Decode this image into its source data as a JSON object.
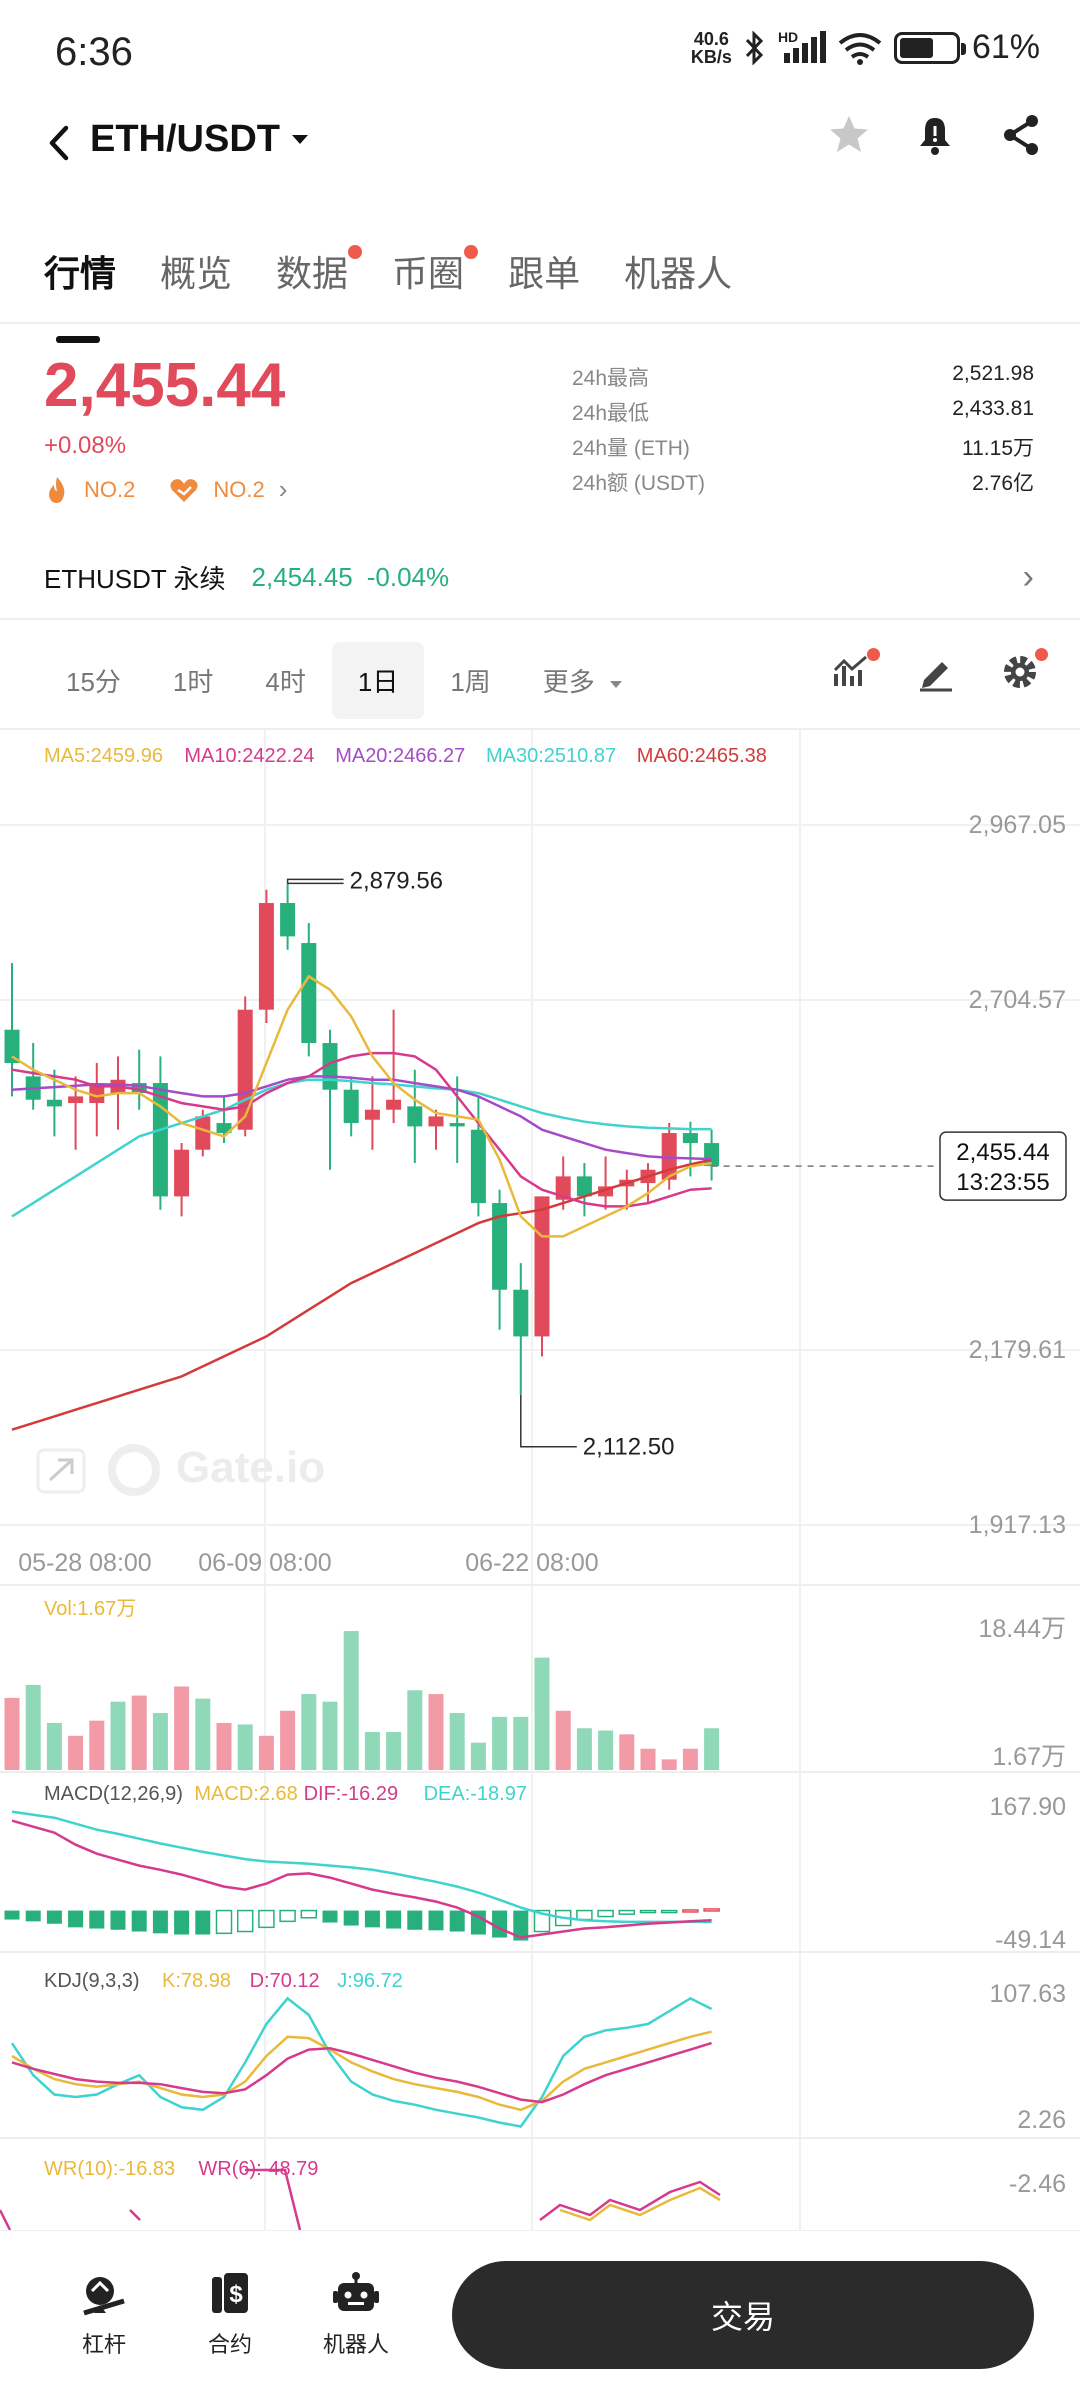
{
  "status": {
    "time": "6:36",
    "net_speed_value": "40.6",
    "net_speed_unit": "KB/s",
    "battery": "61%",
    "battery_level": 0.61,
    "hd_label": "HD"
  },
  "header": {
    "pair": "ETH/USDT"
  },
  "tabs": [
    {
      "label": "行情",
      "dot": false
    },
    {
      "label": "概览",
      "dot": false
    },
    {
      "label": "数据",
      "dot": true
    },
    {
      "label": "币圈",
      "dot": true
    },
    {
      "label": "跟单",
      "dot": false
    },
    {
      "label": "机器人",
      "dot": false
    }
  ],
  "price": {
    "last": "2,455.44",
    "change": "+0.08%",
    "rank1": "NO.2",
    "rank2": "NO.2",
    "stats": [
      {
        "label": "24h最高",
        "value": "2,521.98"
      },
      {
        "label": "24h最低",
        "value": "2,433.81"
      },
      {
        "label": "24h量 (ETH)",
        "value": "11.15万"
      },
      {
        "label": "24h额 (USDT)",
        "value": "2.76亿"
      }
    ]
  },
  "perp": {
    "label": "ETHUSDT 永续",
    "price": "2,454.45",
    "change": "-0.04%"
  },
  "intervals": [
    "15分",
    "1时",
    "4时",
    "1日",
    "1周"
  ],
  "active_interval": "1日",
  "more_label": "更多",
  "colors": {
    "up": "#e14a5a",
    "down": "#27b07c",
    "ma5": "#e8b93a",
    "ma10": "#d63a8c",
    "ma20": "#a64bc7",
    "ma30": "#3fd3cf",
    "ma60": "#d43a3a"
  },
  "chart_data": {
    "type": "candlestick",
    "ma_legend": [
      {
        "label": "MA5:2459.96",
        "color": "#e8b93a"
      },
      {
        "label": "MA10:2422.24",
        "color": "#d63a8c"
      },
      {
        "label": "MA20:2466.27",
        "color": "#a64bc7"
      },
      {
        "label": "MA30:2510.87",
        "color": "#3fd3cf"
      },
      {
        "label": "MA60:2465.38",
        "color": "#d43a3a"
      }
    ],
    "y_ticks": [
      "2,967.05",
      "2,704.57",
      "2,179.61",
      "1,917.13"
    ],
    "y_range": [
      1917.13,
      2967.05
    ],
    "x_labels": [
      "05-28 08:00",
      "06-09 08:00",
      "06-22 08:00"
    ],
    "high_label": "2,879.56",
    "low_label": "2,112.50",
    "last_price": "2,455.44",
    "countdown": "13:23:55",
    "watermark": "Gate.io",
    "candles": [
      {
        "o": 2660,
        "h": 2760,
        "l": 2560,
        "c": 2610
      },
      {
        "o": 2590,
        "h": 2640,
        "l": 2540,
        "c": 2555
      },
      {
        "o": 2555,
        "h": 2600,
        "l": 2500,
        "c": 2545
      },
      {
        "o": 2550,
        "h": 2590,
        "l": 2480,
        "c": 2560
      },
      {
        "o": 2550,
        "h": 2610,
        "l": 2500,
        "c": 2580
      },
      {
        "o": 2565,
        "h": 2620,
        "l": 2510,
        "c": 2585
      },
      {
        "o": 2580,
        "h": 2630,
        "l": 2540,
        "c": 2565
      },
      {
        "o": 2580,
        "h": 2620,
        "l": 2390,
        "c": 2410
      },
      {
        "o": 2410,
        "h": 2490,
        "l": 2380,
        "c": 2480
      },
      {
        "o": 2480,
        "h": 2540,
        "l": 2470,
        "c": 2530
      },
      {
        "o": 2520,
        "h": 2560,
        "l": 2490,
        "c": 2505
      },
      {
        "o": 2510,
        "h": 2710,
        "l": 2500,
        "c": 2690
      },
      {
        "o": 2690,
        "h": 2870,
        "l": 2670,
        "c": 2850
      },
      {
        "o": 2850,
        "h": 2879.56,
        "l": 2780,
        "c": 2800
      },
      {
        "o": 2790,
        "h": 2820,
        "l": 2620,
        "c": 2640
      },
      {
        "o": 2640,
        "h": 2660,
        "l": 2450,
        "c": 2570
      },
      {
        "o": 2570,
        "h": 2590,
        "l": 2500,
        "c": 2520
      },
      {
        "o": 2525,
        "h": 2590,
        "l": 2480,
        "c": 2540
      },
      {
        "o": 2540,
        "h": 2690,
        "l": 2520,
        "c": 2555
      },
      {
        "o": 2545,
        "h": 2600,
        "l": 2460,
        "c": 2515
      },
      {
        "o": 2515,
        "h": 2540,
        "l": 2480,
        "c": 2530
      },
      {
        "o": 2520,
        "h": 2590,
        "l": 2460,
        "c": 2515
      },
      {
        "o": 2510,
        "h": 2560,
        "l": 2380,
        "c": 2400
      },
      {
        "o": 2400,
        "h": 2420,
        "l": 2210,
        "c": 2270
      },
      {
        "o": 2270,
        "h": 2310,
        "l": 2112.5,
        "c": 2200
      },
      {
        "o": 2200,
        "h": 2410,
        "l": 2170,
        "c": 2410
      },
      {
        "o": 2405,
        "h": 2470,
        "l": 2390,
        "c": 2440
      },
      {
        "o": 2440,
        "h": 2460,
        "l": 2380,
        "c": 2410
      },
      {
        "o": 2410,
        "h": 2470,
        "l": 2390,
        "c": 2425
      },
      {
        "o": 2425,
        "h": 2450,
        "l": 2390,
        "c": 2435
      },
      {
        "o": 2430,
        "h": 2460,
        "l": 2400,
        "c": 2450
      },
      {
        "o": 2435,
        "h": 2520,
        "l": 2420,
        "c": 2505
      },
      {
        "o": 2505,
        "h": 2521.98,
        "l": 2440,
        "c": 2490
      },
      {
        "o": 2490,
        "h": 2510,
        "l": 2433.81,
        "c": 2455.44
      }
    ],
    "ma5": [
      2620,
      2600,
      2585,
      2570,
      2560,
      2565,
      2565,
      2545,
      2520,
      2510,
      2500,
      2530,
      2610,
      2690,
      2740,
      2720,
      2680,
      2620,
      2580,
      2555,
      2535,
      2530,
      2525,
      2465,
      2380,
      2350,
      2350,
      2365,
      2380,
      2395,
      2415,
      2440,
      2455,
      2460
    ],
    "ma10": [
      2600,
      2595,
      2590,
      2585,
      2575,
      2575,
      2570,
      2560,
      2550,
      2545,
      2540,
      2545,
      2565,
      2580,
      2590,
      2610,
      2620,
      2625,
      2625,
      2620,
      2600,
      2560,
      2520,
      2480,
      2440,
      2420,
      2410,
      2400,
      2395,
      2395,
      2400,
      2410,
      2420,
      2422
    ],
    "ma20": [
      2570,
      2572,
      2574,
      2576,
      2578,
      2578,
      2576,
      2570,
      2565,
      2560,
      2560,
      2565,
      2575,
      2585,
      2590,
      2590,
      2588,
      2585,
      2585,
      2580,
      2575,
      2570,
      2560,
      2545,
      2530,
      2510,
      2500,
      2490,
      2480,
      2475,
      2470,
      2468,
      2467,
      2466
    ],
    "ma30": [
      2380,
      2400,
      2420,
      2440,
      2460,
      2480,
      2500,
      2510,
      2520,
      2530,
      2540,
      2555,
      2570,
      2580,
      2585,
      2585,
      2583,
      2580,
      2578,
      2575,
      2572,
      2570,
      2565,
      2555,
      2545,
      2535,
      2528,
      2522,
      2518,
      2515,
      2513,
      2512,
      2511,
      2511
    ],
    "ma60": [
      2060,
      2070,
      2080,
      2090,
      2100,
      2110,
      2120,
      2130,
      2140,
      2155,
      2170,
      2185,
      2200,
      2220,
      2240,
      2260,
      2280,
      2295,
      2310,
      2325,
      2340,
      2355,
      2370,
      2380,
      2385,
      2390,
      2400,
      2410,
      2420,
      2430,
      2440,
      2450,
      2458,
      2465
    ],
    "volume": {
      "label": "Vol:1.67万",
      "y_ticks": [
        "18.44万",
        "1.67万"
      ],
      "y_range": [
        0,
        18.44
      ],
      "values": [
        9.5,
        11.2,
        6.2,
        4.5,
        6.5,
        9.0,
        9.8,
        7.5,
        11.0,
        9.4,
        6.2,
        6.0,
        4.5,
        7.8,
        10.0,
        9.0,
        18.3,
        5.0,
        5.0,
        10.5,
        10.0,
        7.5,
        3.6,
        7.0,
        7.0,
        14.8,
        7.8,
        5.5,
        5.2,
        4.7,
        2.8,
        1.4,
        2.8,
        5.5
      ],
      "up": [
        true,
        false,
        false,
        true,
        true,
        false,
        true,
        false,
        true,
        false,
        true,
        false,
        true,
        true,
        false,
        false,
        false,
        false,
        false,
        false,
        true,
        false,
        false,
        false,
        false,
        false,
        true,
        false,
        false,
        true,
        true,
        true,
        true,
        false
      ]
    },
    "macd": {
      "label": "MACD(12,26,9)",
      "items": [
        {
          "label": "MACD:2.68",
          "color": "#e8b93a"
        },
        {
          "label": "DIF:-16.29",
          "color": "#d63a8c"
        },
        {
          "label": "DEA:-18.97",
          "color": "#3fd3cf"
        }
      ],
      "y_ticks": [
        "167.90",
        "-49.14"
      ],
      "y_range": [
        -49.14,
        167.9
      ],
      "dif": [
        150,
        140,
        130,
        110,
        95,
        85,
        75,
        68,
        60,
        50,
        40,
        35,
        45,
        60,
        62,
        55,
        45,
        35,
        28,
        22,
        15,
        5,
        -10,
        -30,
        -45,
        -40,
        -35,
        -30,
        -28,
        -25,
        -22,
        -20,
        -18,
        -16.29
      ],
      "dea": [
        165,
        160,
        155,
        145,
        135,
        128,
        120,
        112,
        105,
        98,
        92,
        86,
        82,
        80,
        78,
        75,
        72,
        68,
        62,
        55,
        48,
        40,
        30,
        18,
        5,
        -5,
        -12,
        -16,
        -18,
        -19,
        -19,
        -19,
        -19,
        -18.97
      ],
      "hist": [
        -15,
        -18,
        -22,
        -28,
        -30,
        -32,
        -35,
        -38,
        -40,
        -40,
        -38,
        -35,
        -28,
        -18,
        -12,
        -20,
        -25,
        -28,
        -30,
        -32,
        -33,
        -35,
        -40,
        -45,
        -50,
        -35,
        -25,
        -15,
        -10,
        -6,
        -3,
        -1,
        1,
        2.68
      ]
    },
    "kdj": {
      "label": "KDJ(9,3,3)",
      "items": [
        {
          "label": "K:78.98",
          "color": "#e8b93a"
        },
        {
          "label": "D:70.12",
          "color": "#d63a8c"
        },
        {
          "label": "J:96.72",
          "color": "#3fd3cf"
        }
      ],
      "y_ticks": [
        "107.63",
        "2.26"
      ],
      "y_range": [
        2.26,
        107.63
      ],
      "k": [
        60,
        50,
        42,
        38,
        36,
        38,
        40,
        35,
        30,
        28,
        30,
        40,
        60,
        75,
        74,
        65,
        55,
        48,
        42,
        38,
        35,
        32,
        28,
        22,
        18,
        25,
        40,
        50,
        55,
        60,
        65,
        70,
        75,
        78.98
      ],
      "d": [
        55,
        50,
        46,
        42,
        40,
        39,
        39,
        38,
        35,
        32,
        31,
        34,
        45,
        58,
        65,
        66,
        62,
        57,
        52,
        47,
        43,
        40,
        36,
        31,
        26,
        24,
        30,
        38,
        45,
        50,
        55,
        60,
        65,
        70.12
      ],
      "j": [
        70,
        45,
        30,
        28,
        30,
        38,
        45,
        28,
        20,
        18,
        28,
        55,
        85,
        105,
        92,
        62,
        40,
        30,
        25,
        22,
        18,
        15,
        12,
        8,
        5,
        28,
        60,
        75,
        80,
        82,
        85,
        95,
        105,
        96.72
      ]
    },
    "wr": {
      "items": [
        {
          "label": "WR(10):-16.83",
          "color": "#e8b93a"
        },
        {
          "label": "WR(6):-48.79",
          "color": "#d63a8c"
        }
      ],
      "y_ticks": [
        "-2.46"
      ]
    }
  },
  "bottom_nav": {
    "items": [
      "杠杆",
      "合约",
      "机器人"
    ],
    "trade_label": "交易"
  }
}
